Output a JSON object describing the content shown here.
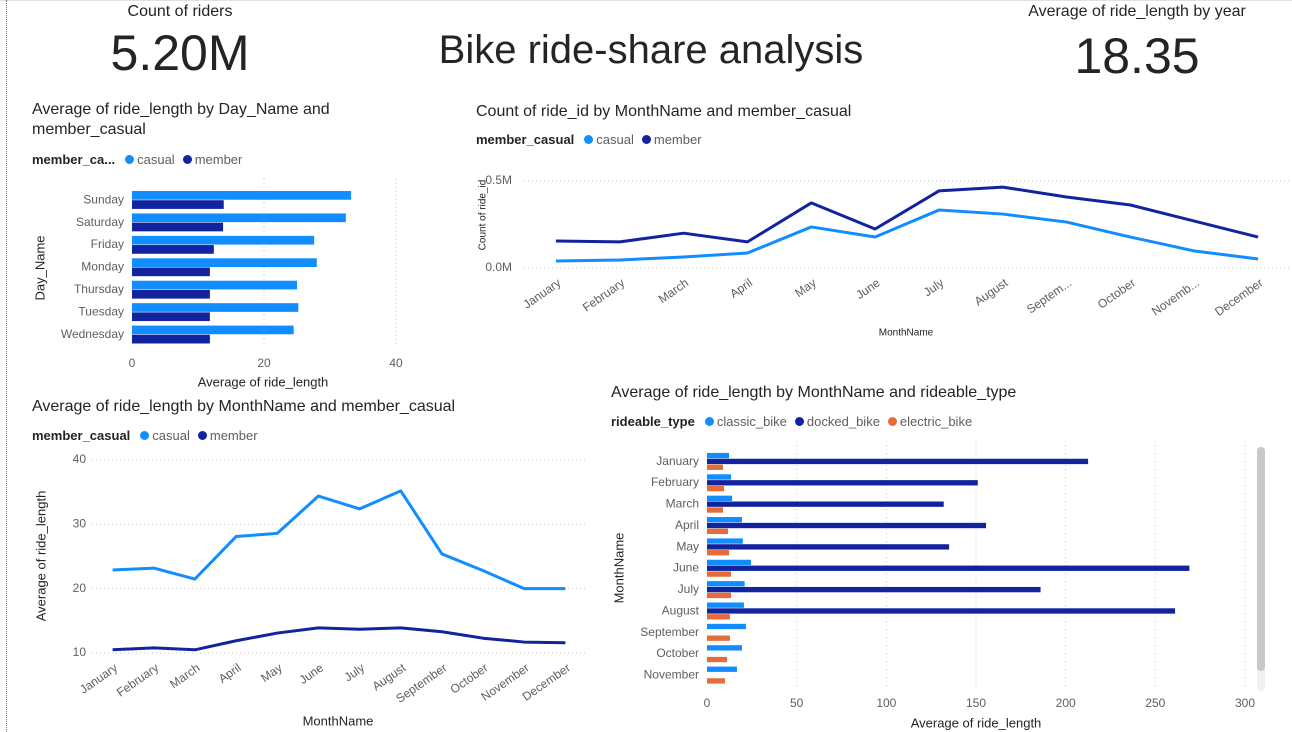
{
  "title": "Bike ride-share analysis",
  "cards": [
    {
      "label": "Count of riders",
      "value": "5.20M"
    },
    {
      "label": "Average of ride_length by year",
      "value": "18.35"
    }
  ],
  "chart_data": [
    {
      "type": "bar",
      "orientation": "horizontal",
      "title": "Average of ride_length by Day_Name and member_casual",
      "legend_title": "member_ca...",
      "x_label": "Average of ride_length",
      "y_label": "Day_Name",
      "categories": [
        "Sunday",
        "Saturday",
        "Friday",
        "Monday",
        "Thursday",
        "Tuesday",
        "Wednesday"
      ],
      "series": [
        {
          "name": "casual",
          "color": "#118DFF",
          "values": [
            33.2,
            32.4,
            27.6,
            28.0,
            25.0,
            25.2,
            24.5
          ]
        },
        {
          "name": "member",
          "color": "#12239E",
          "values": [
            13.9,
            13.8,
            12.4,
            11.8,
            11.8,
            11.8,
            11.8
          ]
        }
      ],
      "xlim": [
        0,
        40
      ],
      "xticks": [
        0,
        20,
        40
      ],
      "grid": true
    },
    {
      "type": "line",
      "title": "Count of ride_id by MonthName and member_casual",
      "legend_title": "member_casual",
      "x_label": "MonthName",
      "y_label": "Count of ride_id",
      "categories": [
        "January",
        "February",
        "March",
        "April",
        "May",
        "June",
        "July",
        "August",
        "Septem...",
        "October",
        "Novemb...",
        "December"
      ],
      "series": [
        {
          "name": "casual",
          "color": "#118DFF",
          "values": [
            40000,
            46000,
            63000,
            86000,
            236000,
            178000,
            333000,
            310000,
            264000,
            178000,
            98000,
            52000
          ]
        },
        {
          "name": "member",
          "color": "#12239E",
          "values": [
            155000,
            150000,
            200000,
            150000,
            374000,
            224000,
            443000,
            465000,
            408000,
            362000,
            270000,
            178000
          ]
        }
      ],
      "ylim": [
        0,
        500000
      ],
      "yticks": [
        {
          "value": 0,
          "label": "0.0M"
        },
        {
          "value": 500000,
          "label": "0.5M"
        }
      ],
      "grid": true
    },
    {
      "type": "line",
      "title": "Average of ride_length by MonthName and member_casual",
      "legend_title": "member_casual",
      "x_label": "MonthName",
      "y_label": "Average of ride_length",
      "categories": [
        "January",
        "February",
        "March",
        "April",
        "May",
        "June",
        "July",
        "August",
        "September",
        "October",
        "November",
        "December"
      ],
      "series": [
        {
          "name": "casual",
          "color": "#118DFF",
          "values": [
            22.9,
            23.2,
            21.5,
            28.1,
            28.6,
            34.4,
            32.4,
            35.2,
            25.4,
            22.8,
            20.0,
            20.0
          ]
        },
        {
          "name": "member",
          "color": "#12239E",
          "values": [
            10.5,
            10.8,
            10.5,
            11.9,
            13.1,
            13.9,
            13.7,
            13.9,
            13.3,
            12.3,
            11.7,
            11.6
          ]
        }
      ],
      "ylim": [
        10,
        40
      ],
      "yticks": [
        10,
        20,
        30,
        40
      ],
      "grid": true
    },
    {
      "type": "bar",
      "orientation": "horizontal",
      "title": "Average of ride_length by MonthName and rideable_type",
      "legend_title": "rideable_type",
      "x_label": "Average of ride_length",
      "y_label": "MonthName",
      "categories": [
        "January",
        "February",
        "March",
        "April",
        "May",
        "June",
        "July",
        "August",
        "September",
        "October",
        "November"
      ],
      "series": [
        {
          "name": "classic_bike",
          "color": "#118DFF",
          "values": [
            12.3,
            13.4,
            14.0,
            19.5,
            20.0,
            24.5,
            21.0,
            20.6,
            21.7,
            19.5,
            16.7
          ]
        },
        {
          "name": "docked_bike",
          "color": "#12239E",
          "values": [
            212.5,
            151,
            132,
            155.6,
            135,
            269,
            186,
            261,
            null,
            null,
            null
          ]
        },
        {
          "name": "electric_bike",
          "color": "#E66C37",
          "values": [
            8.9,
            9.5,
            8.9,
            11.7,
            12.3,
            13.4,
            13.4,
            12.8,
            12.8,
            11.2,
            10.0
          ]
        }
      ],
      "xlim": [
        0,
        300
      ],
      "xticks": [
        0,
        50,
        100,
        150,
        200,
        250,
        300
      ],
      "grid": true
    }
  ]
}
